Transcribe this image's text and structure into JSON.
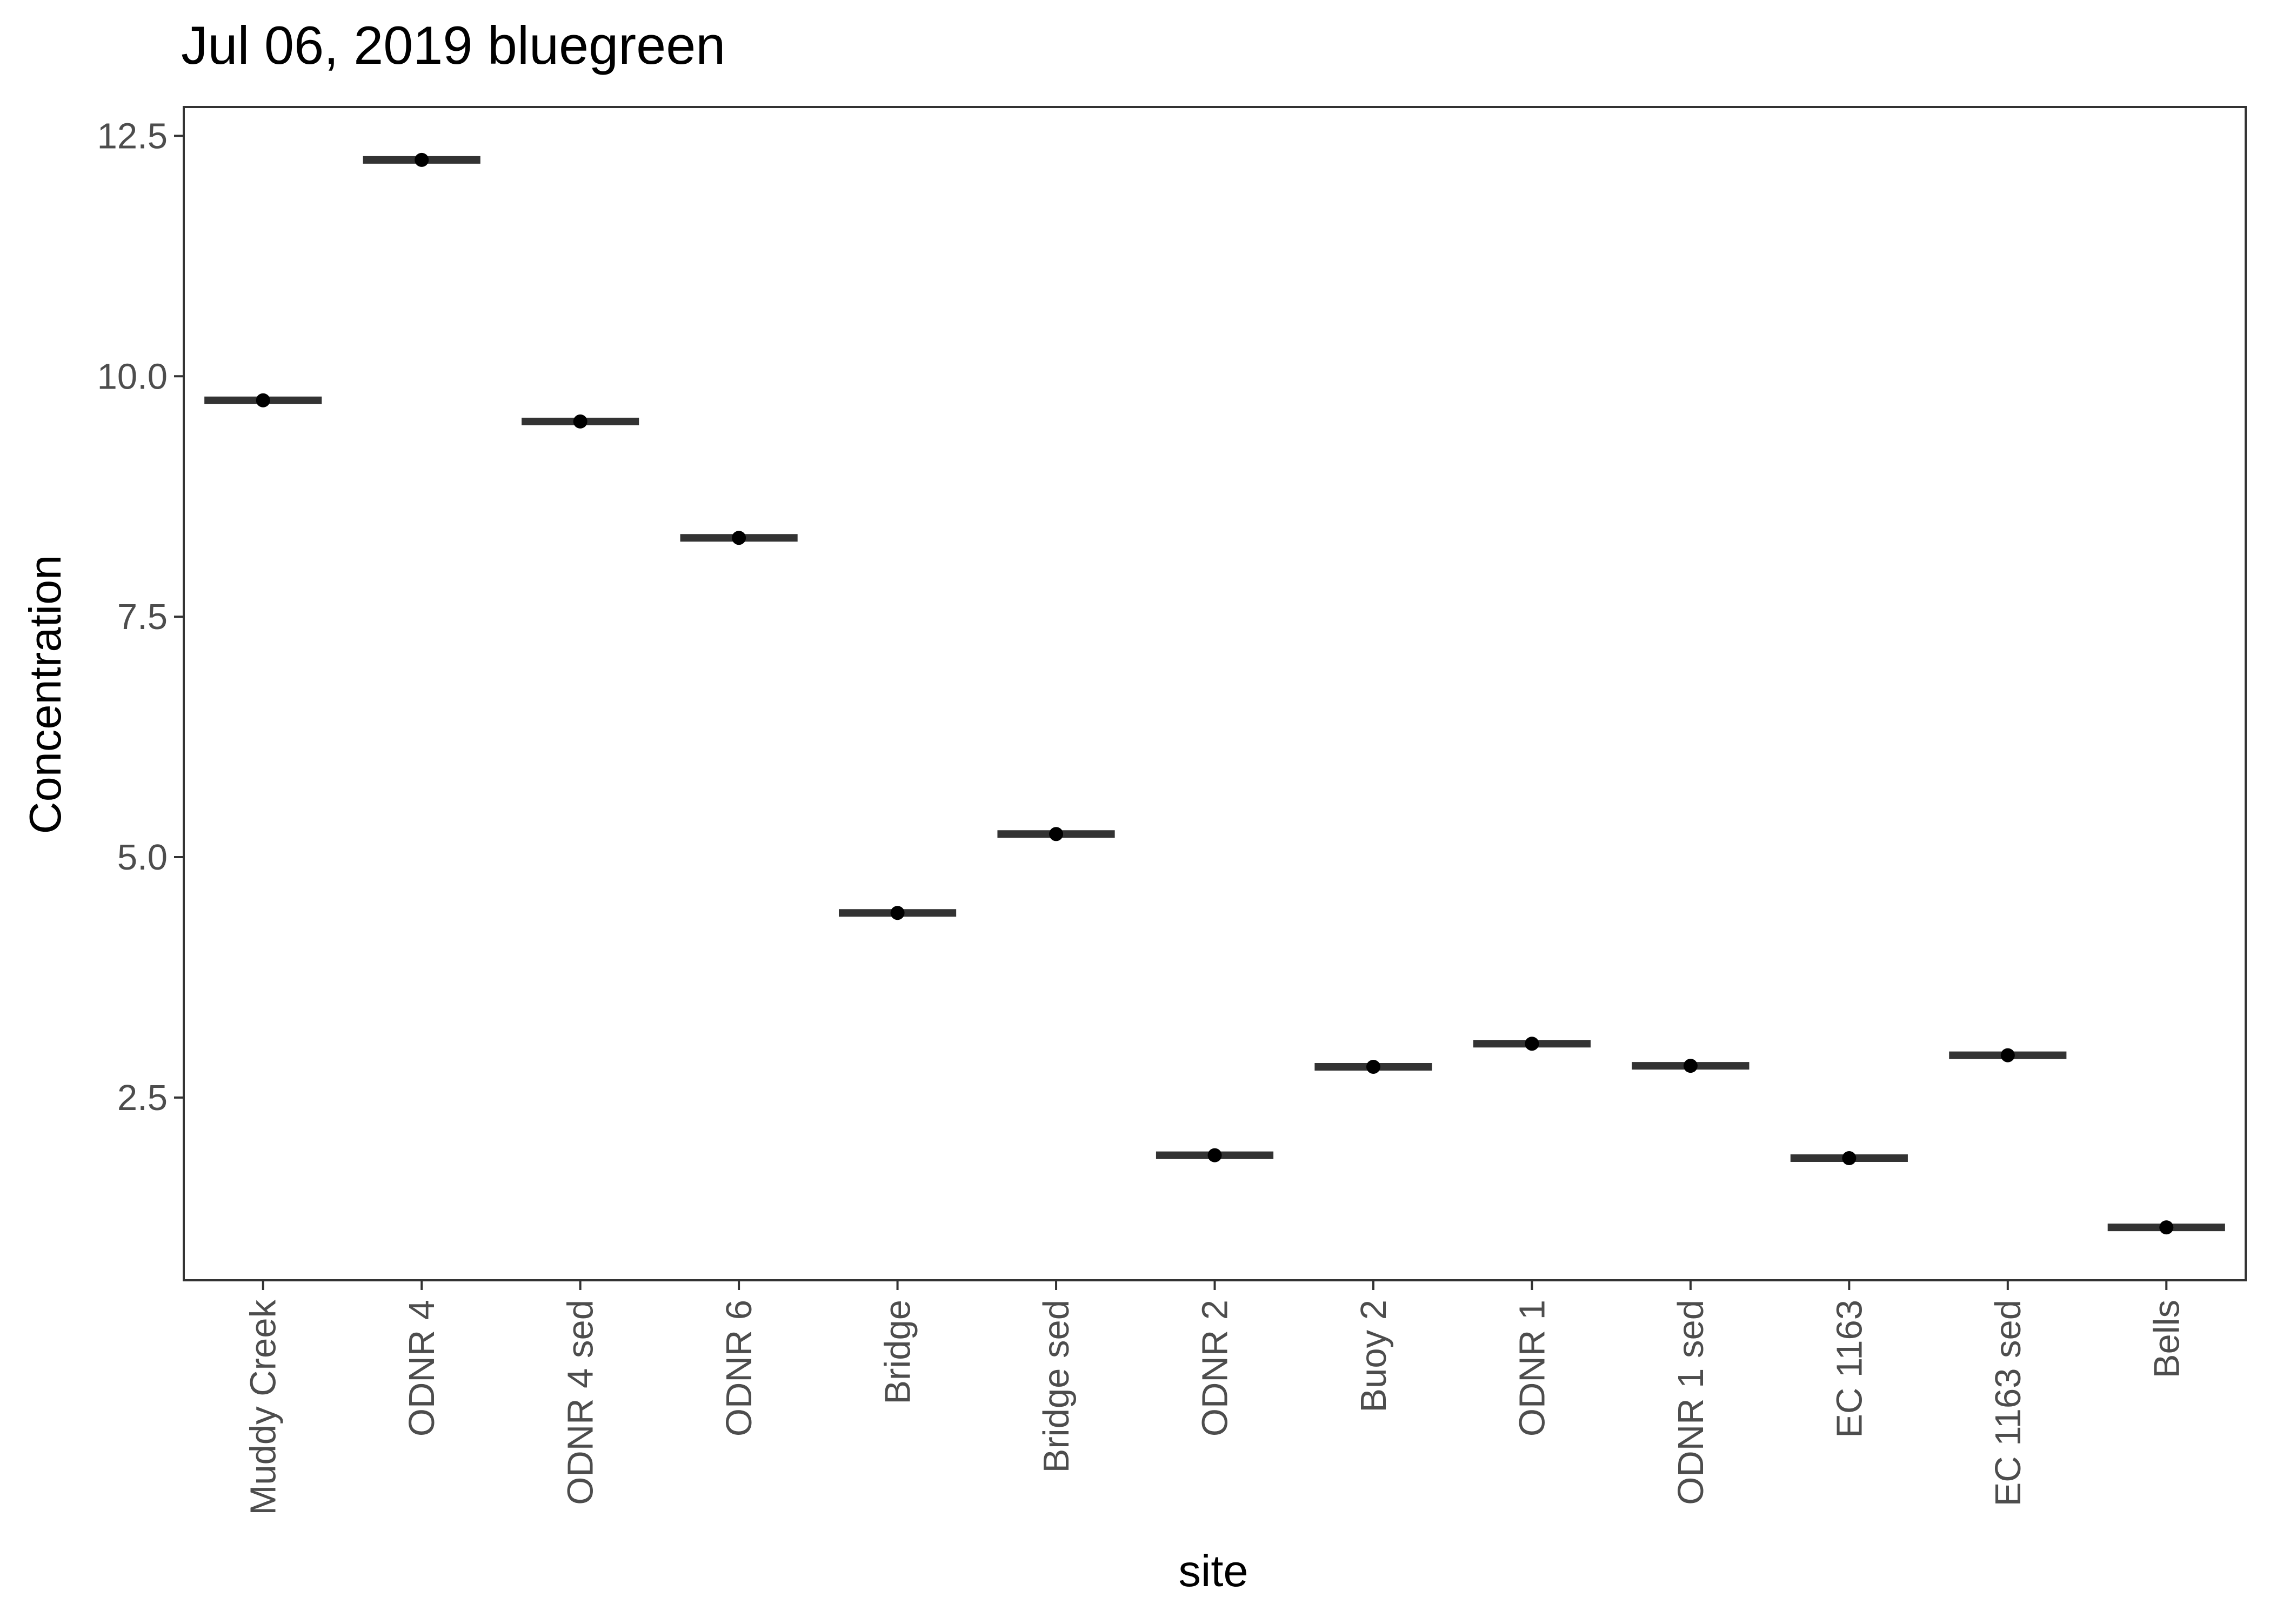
{
  "chart_data": {
    "type": "scatter",
    "title": "Jul 06, 2019 bluegreen",
    "xlabel": "site",
    "ylabel": "Concentration",
    "categories": [
      "Muddy Creek",
      "ODNR 4",
      "ODNR 4 sed",
      "ODNR 6",
      "Bridge",
      "Bridge sed",
      "ODNR 2",
      "Buoy 2",
      "ODNR 1",
      "ODNR 1 sed",
      "EC 1163",
      "EC 1163 sed",
      "Bells"
    ],
    "values": [
      9.75,
      12.25,
      9.53,
      8.32,
      4.42,
      5.24,
      1.9,
      2.82,
      3.06,
      2.83,
      1.87,
      2.94,
      1.15
    ],
    "series_style": "point with median line (crossbar)",
    "ylim": [
      0.6,
      12.8
    ],
    "yticks": [
      2.5,
      5.0,
      7.5,
      10.0,
      12.5
    ],
    "ytick_labels": [
      "2.5",
      "5.0",
      "7.5",
      "10.0",
      "12.5"
    ],
    "grid": false,
    "legend": "none",
    "colors": {
      "point": "#000000",
      "line": "#333333",
      "panel_border": "#333333",
      "tick_label": "#4d4d4d"
    }
  }
}
